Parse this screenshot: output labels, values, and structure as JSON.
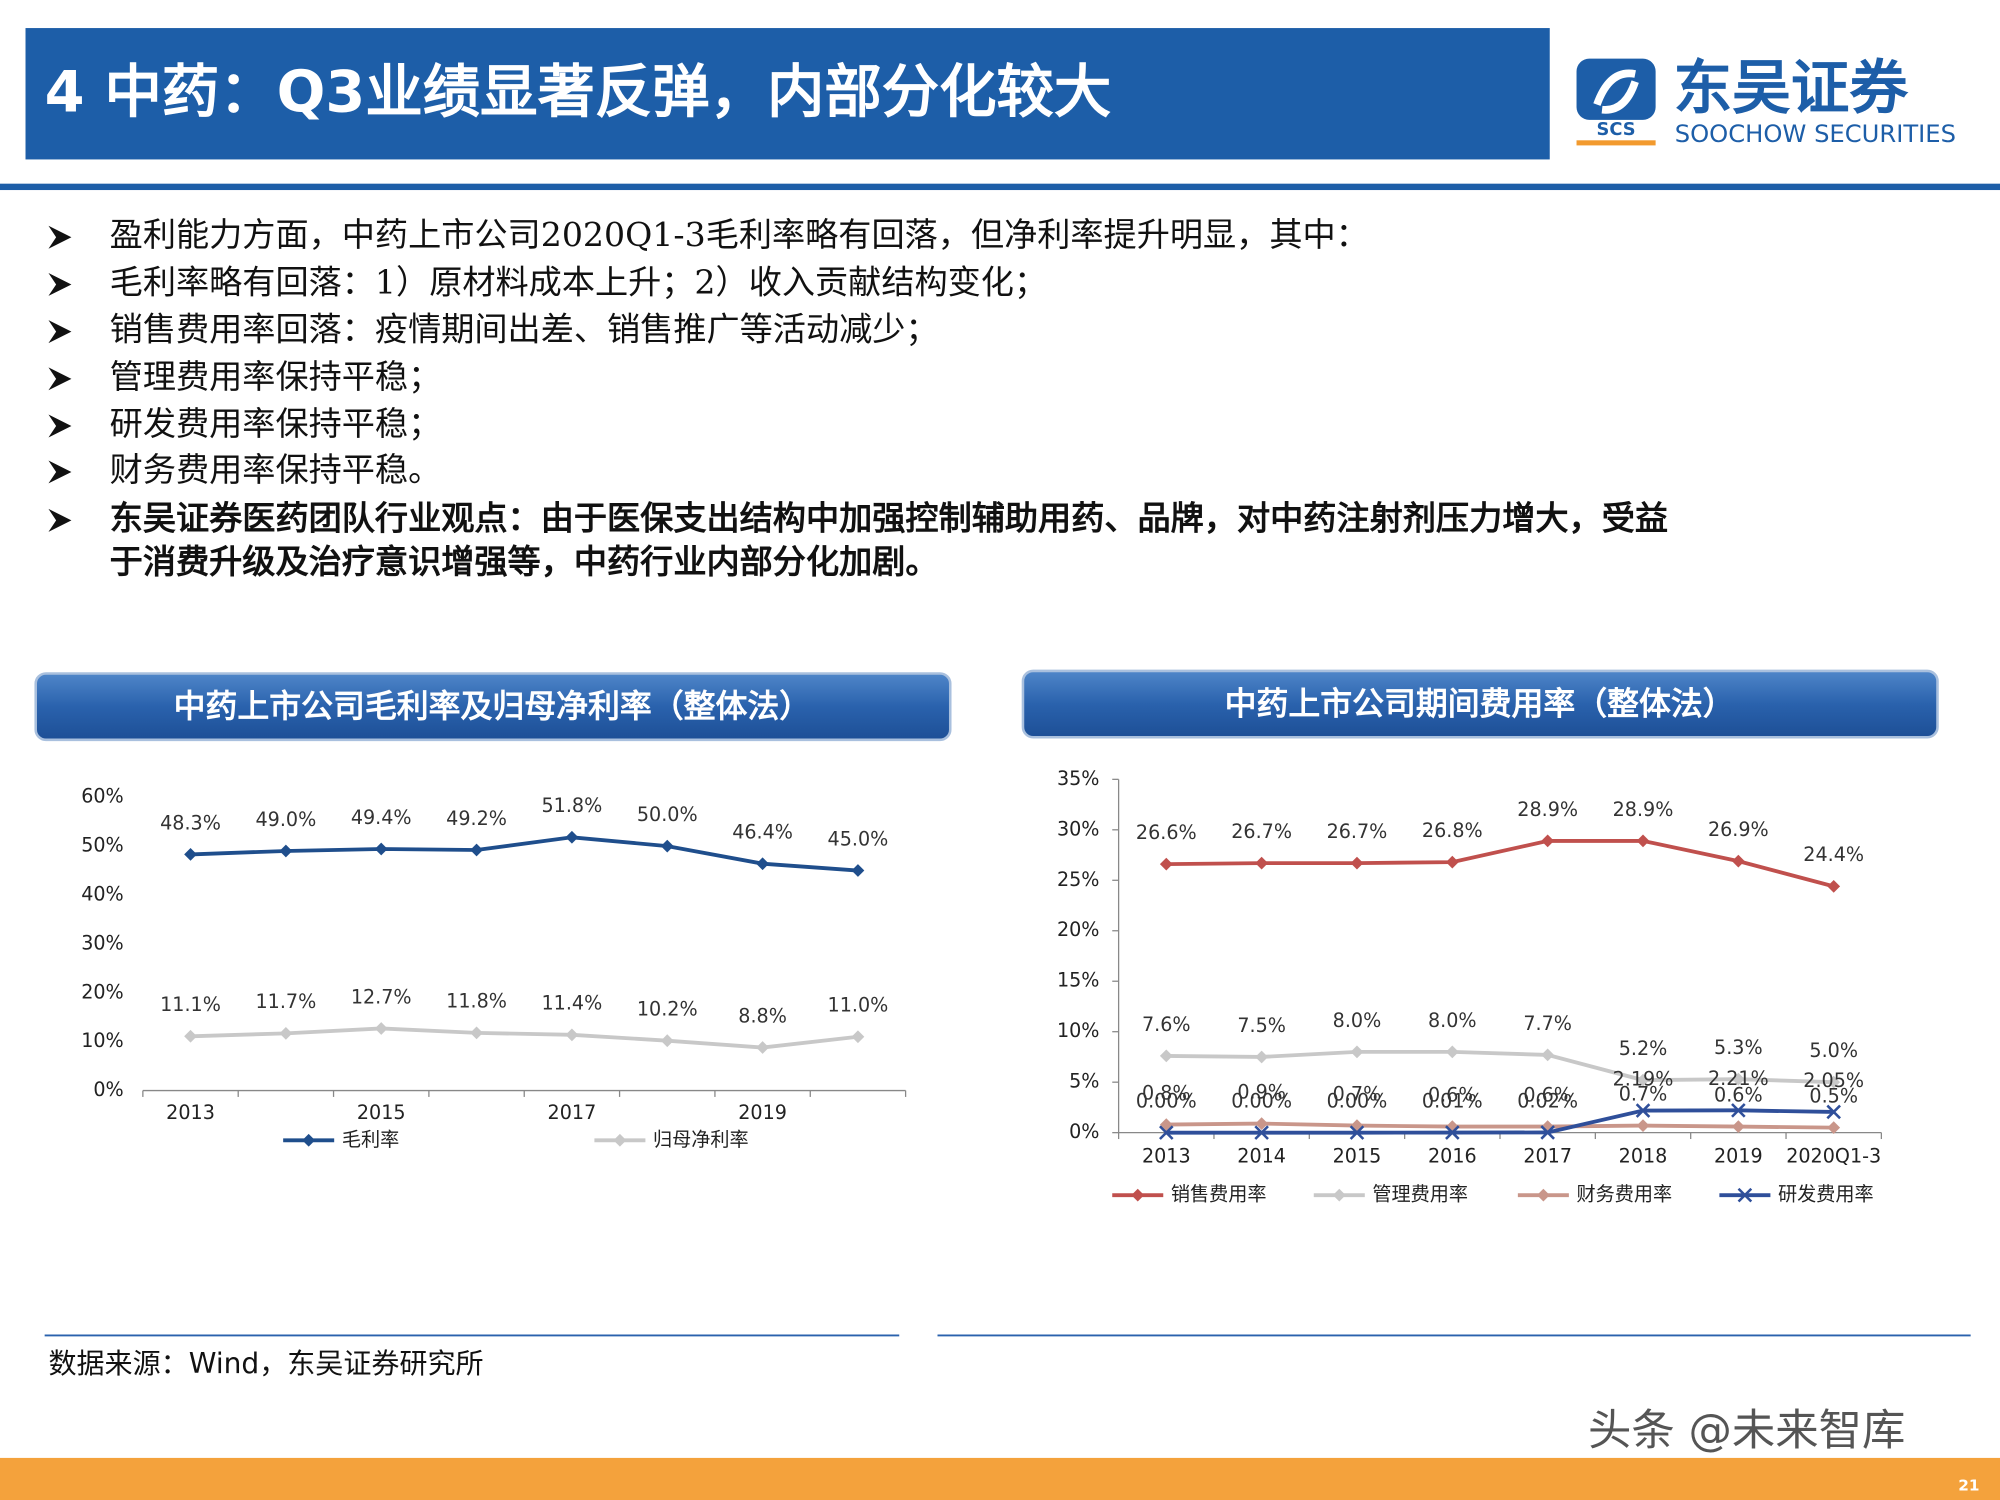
{
  "header": {
    "title": "4 中药：Q3业绩显著反弹，内部分化较大",
    "logo_abbr": "SCS",
    "logo_cn": "东吴证券",
    "logo_en": "SOOCHOW SECURITIES"
  },
  "bullets": [
    [
      "盈利能力方面，中药上市公司2020Q1-3毛利率略有回落，但净利率提升明显，其中："
    ],
    [
      "毛利率略有回落：1）原材料成本上升；2）收入贡献结构变化；"
    ],
    [
      "销售费用率回落：疫情期间出差、销售推广等活动减少；"
    ],
    [
      "管理费用率保持平稳；"
    ],
    [
      "研发费用率保持平稳；"
    ],
    [
      "财务费用率保持平稳。"
    ],
    [
      "东吴证券医药团队行业观点：由于医保支出结构中加强控制辅助用药、品牌，对中药注射剂压力增大，受益",
      "于消费升级及治疗意识增强等，中药行业内部分化加剧。"
    ]
  ],
  "chart_data": [
    {
      "type": "line",
      "title": "中药上市公司毛利率及归母净利率（整体法）",
      "categories": [
        "2013",
        null,
        "2015",
        null,
        "2017",
        null,
        "2019",
        null
      ],
      "series": [
        {
          "name": "毛利率",
          "color": "#1f4e8c",
          "marker": "diamond",
          "values": [
            48.3,
            49.0,
            49.4,
            49.2,
            51.8,
            50.0,
            46.4,
            45.0
          ],
          "value_labels": [
            "48.3%",
            "49.0%",
            "49.4%",
            "49.2%",
            "51.8%",
            "50.0%",
            "46.4%",
            "45.0%"
          ]
        },
        {
          "name": "归母净利率",
          "color": "#c8c8c8",
          "marker": "diamond",
          "values": [
            11.1,
            11.7,
            12.7,
            11.8,
            11.4,
            10.2,
            8.8,
            11.0
          ],
          "value_labels": [
            "11.1%",
            "11.7%",
            "12.7%",
            "11.8%",
            "11.4%",
            "10.2%",
            "8.8%",
            "11.0%"
          ]
        }
      ],
      "ylim": [
        0,
        60
      ],
      "yticks": [
        {
          "value": 0,
          "label": "0%"
        },
        {
          "value": 10,
          "label": "10%"
        },
        {
          "value": 20,
          "label": "20%"
        },
        {
          "value": 30,
          "label": "30%"
        },
        {
          "value": 40,
          "label": "40%"
        },
        {
          "value": 50,
          "label": "50%"
        },
        {
          "value": 60,
          "label": "60%"
        }
      ]
    },
    {
      "type": "line",
      "title": "中药上市公司期间费用率（整体法）",
      "categories": [
        "2013",
        "2014",
        "2015",
        "2016",
        "2017",
        "2018",
        "2019",
        "2020Q1-3"
      ],
      "series": [
        {
          "name": "销售费用率",
          "color": "#c0504d",
          "marker": "diamond",
          "values": [
            26.6,
            26.7,
            26.7,
            26.8,
            28.9,
            28.9,
            26.9,
            24.4
          ],
          "value_labels": [
            "26.6%",
            "26.7%",
            "26.7%",
            "26.8%",
            "28.9%",
            "28.9%",
            "26.9%",
            "24.4%"
          ]
        },
        {
          "name": "管理费用率",
          "color": "#c8c8c8",
          "marker": "diamond",
          "values": [
            7.6,
            7.5,
            8.0,
            8.0,
            7.7,
            5.2,
            5.3,
            5.0
          ],
          "value_labels": [
            "7.6%",
            "7.5%",
            "8.0%",
            "8.0%",
            "7.7%",
            "5.2%",
            "5.3%",
            "5.0%"
          ]
        },
        {
          "name": "财务费用率",
          "color": "#c9968a",
          "marker": "diamond",
          "values": [
            0.8,
            0.9,
            0.7,
            0.6,
            0.6,
            0.7,
            0.6,
            0.5
          ],
          "value_labels": [
            "0.8%",
            "0.9%",
            "0.7%",
            "0.6%",
            "0.6%",
            "0.7%",
            "0.6%",
            "0.5%"
          ]
        },
        {
          "name": "研发费用率",
          "color": "#2f4f9a",
          "marker": "x",
          "values": [
            0.0,
            0.0,
            0.0,
            0.01,
            0.02,
            2.19,
            2.21,
            2.05
          ],
          "value_labels": [
            "0.00%",
            "0.00%",
            "0.00%",
            "0.01%",
            "0.02%",
            "2.19%",
            "2.21%",
            "2.05%"
          ]
        }
      ],
      "ylim": [
        0,
        35
      ],
      "yticks": [
        {
          "value": 0,
          "label": "0%"
        },
        {
          "value": 5,
          "label": "5%"
        },
        {
          "value": 10,
          "label": "10%"
        },
        {
          "value": 15,
          "label": "15%"
        },
        {
          "value": 20,
          "label": "20%"
        },
        {
          "value": 25,
          "label": "25%"
        },
        {
          "value": 30,
          "label": "30%"
        },
        {
          "value": 35,
          "label": "35%"
        }
      ]
    }
  ],
  "source": "数据来源：Wind，东吴证券研究所",
  "watermark": "头条 @未来智库",
  "page_number": "21"
}
